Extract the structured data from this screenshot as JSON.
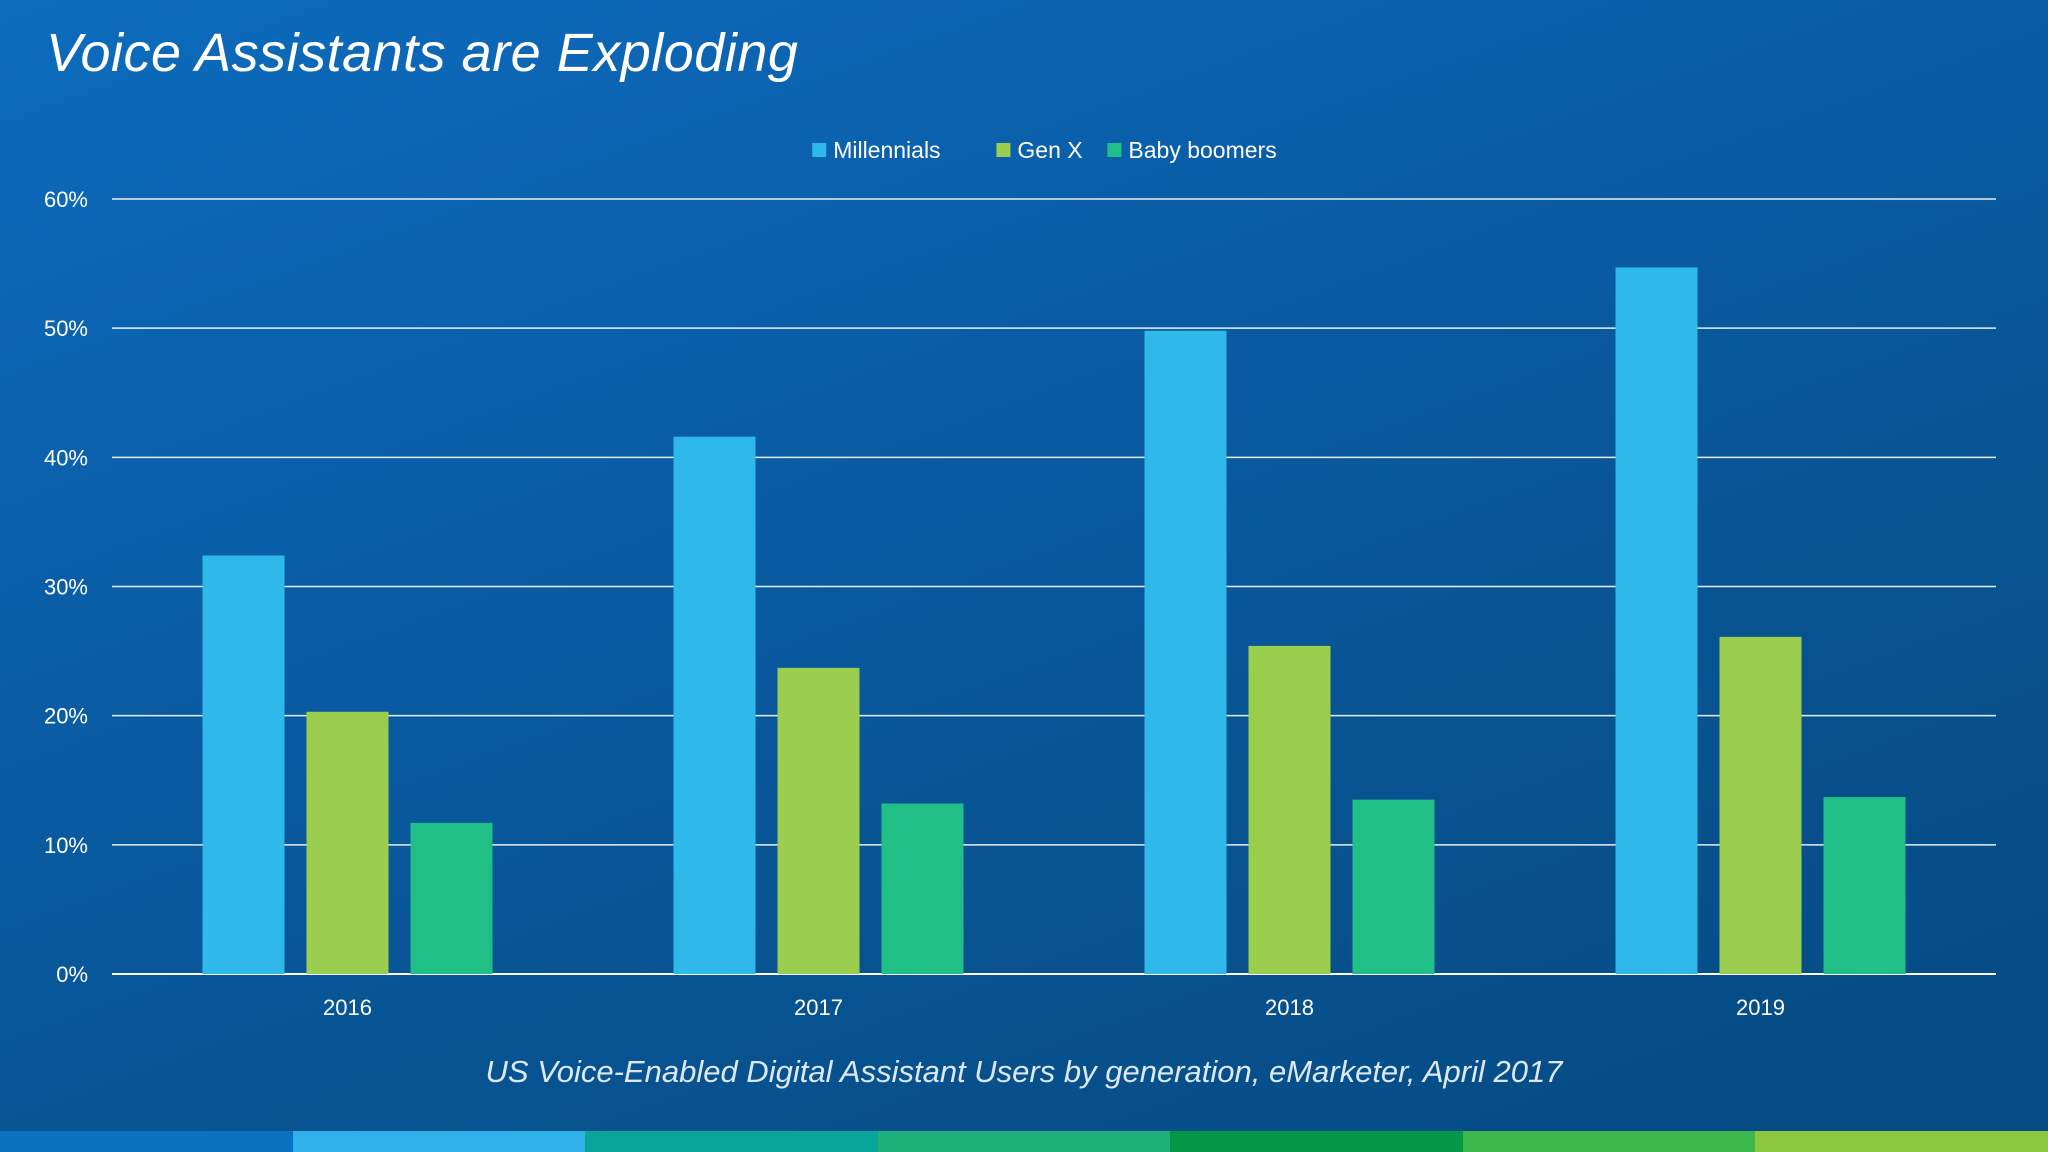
{
  "slide": {
    "title": "Voice Assistants are Exploding",
    "caption": "US Voice-Enabled Digital Assistant Users by generation, eMarketer, April 2017"
  },
  "chart_data": {
    "type": "bar",
    "categories": [
      "2016",
      "2017",
      "2018",
      "2019"
    ],
    "series": [
      {
        "name": "Millennials",
        "values": [
          32.4,
          41.6,
          49.8,
          54.7
        ],
        "color": "#2fb8ea"
      },
      {
        "name": "Gen X",
        "values": [
          20.3,
          23.7,
          25.4,
          26.1
        ],
        "color": "#9bcd4f"
      },
      {
        "name": "Baby boomers",
        "values": [
          11.7,
          13.2,
          13.5,
          13.7
        ],
        "color": "#1fbf86"
      }
    ],
    "y_ticks": [
      "0%",
      "10%",
      "20%",
      "30%",
      "40%",
      "50%",
      "60%"
    ],
    "ylim": [
      0,
      60
    ],
    "grid": true,
    "legend_position": "top-center"
  },
  "footer_strip_colors": [
    "#0b72c1",
    "#2fb0e8",
    "#0aa59a",
    "#1fb17a",
    "#069648",
    "#3cb84c",
    "#8dc63f"
  ]
}
